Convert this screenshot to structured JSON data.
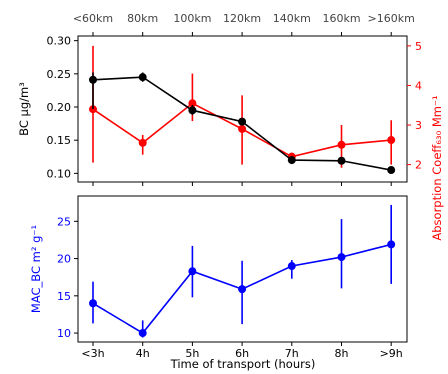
{
  "colors": {
    "black": "#000000",
    "red": "#ff0000",
    "blue": "#0000ff",
    "top_axis_text": "#444444"
  },
  "chart_data": [
    {
      "type": "line",
      "categories": [
        "<3h",
        "4h",
        "5h",
        "6h",
        "7h",
        "8h",
        ">9h"
      ],
      "top_axis": {
        "ticks": [
          "<60km",
          "80km",
          "100km",
          "120km",
          "140km",
          "160km",
          ">160km"
        ]
      },
      "ylabel": "BC μg/m³",
      "ylim": [
        0.087,
        0.307
      ],
      "yticks": [
        0.1,
        0.15,
        0.2,
        0.25,
        0.3
      ],
      "ytick_labels": [
        "0.10",
        "0.15",
        "0.20",
        "0.25",
        "0.30"
      ],
      "y2label": "Absorption Coeff₆₃₀ Mm⁻¹",
      "y2lim": [
        1.56,
        5.25
      ],
      "y2ticks": [
        2,
        3,
        4,
        5
      ],
      "y2tick_labels": [
        "2",
        "3",
        "4",
        "5"
      ],
      "series": [
        {
          "axis": "left",
          "color": "#000000",
          "values": [
            0.241,
            0.245,
            0.195,
            0.178,
            0.12,
            0.119,
            0.105
          ],
          "err_low": [
            0.197,
            0.238,
            0.188,
            0.175,
            0.118,
            0.117,
            0.103
          ],
          "err_high": [
            0.252,
            0.252,
            0.203,
            0.182,
            0.122,
            0.121,
            0.107
          ]
        },
        {
          "axis": "right",
          "color": "#ff0000",
          "values": [
            3.4,
            2.55,
            3.55,
            2.9,
            2.2,
            2.5,
            2.62
          ],
          "err_low": [
            2.05,
            2.25,
            3.1,
            2.0,
            2.05,
            1.92,
            2.0
          ],
          "err_high": [
            5.0,
            2.75,
            4.3,
            3.75,
            2.3,
            3.0,
            3.12
          ]
        }
      ]
    },
    {
      "type": "line",
      "categories": [
        "<3h",
        "4h",
        "5h",
        "6h",
        "7h",
        "8h",
        ">9h"
      ],
      "xlabel": "Time of transport (hours)",
      "ylabel": "MAC_BC m² g⁻¹",
      "ylim": [
        8.8,
        28.4
      ],
      "yticks": [
        10,
        15,
        20,
        25
      ],
      "ytick_labels": [
        "10",
        "15",
        "20",
        "25"
      ],
      "series": [
        {
          "color": "#0000ff",
          "values": [
            14.0,
            10.0,
            18.3,
            15.9,
            19.0,
            20.2,
            21.9
          ],
          "err_low": [
            11.3,
            9.4,
            14.8,
            11.2,
            17.3,
            16.0,
            16.6
          ],
          "err_high": [
            16.9,
            11.7,
            21.7,
            19.7,
            19.8,
            25.3,
            27.2
          ]
        }
      ]
    }
  ]
}
